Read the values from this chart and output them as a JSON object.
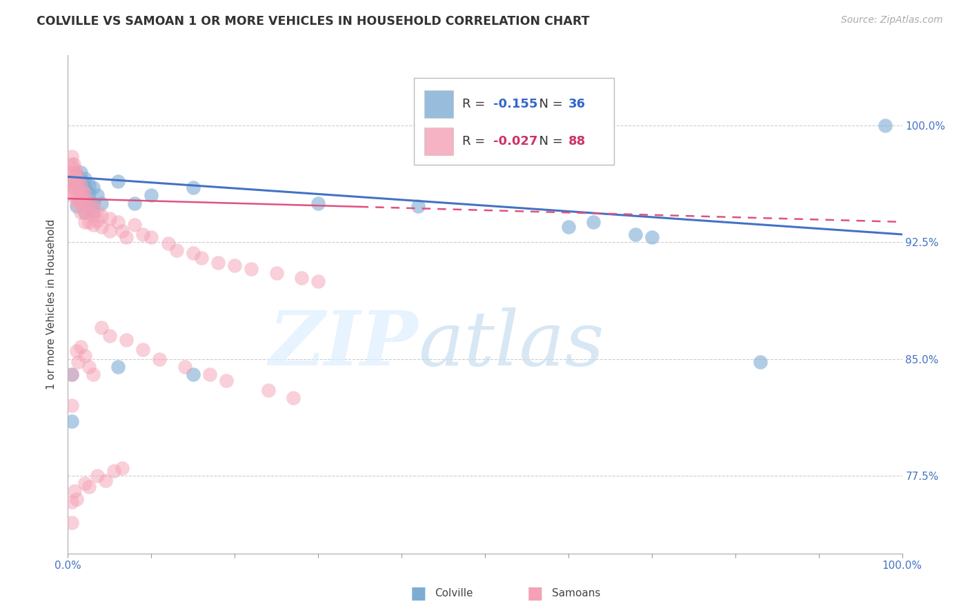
{
  "title": "COLVILLE VS SAMOAN 1 OR MORE VEHICLES IN HOUSEHOLD CORRELATION CHART",
  "source": "Source: ZipAtlas.com",
  "ylabel": "1 or more Vehicles in Household",
  "ytick_labels": [
    "100.0%",
    "92.5%",
    "85.0%",
    "77.5%"
  ],
  "ytick_values": [
    1.0,
    0.925,
    0.85,
    0.775
  ],
  "xmin": 0.0,
  "xmax": 1.0,
  "ymin": 0.725,
  "ymax": 1.045,
  "legend_blue_r": "-0.155",
  "legend_blue_n": "36",
  "legend_pink_r": "-0.027",
  "legend_pink_n": "88",
  "blue_color": "#7eadd4",
  "pink_color": "#f4a0b5",
  "blue_line_color": "#4472c4",
  "pink_line_color": "#e05080",
  "blue_scatter_alpha": 0.6,
  "pink_scatter_alpha": 0.5,
  "blue_x": [
    0.005,
    0.01,
    0.012,
    0.015,
    0.015,
    0.018,
    0.02,
    0.02,
    0.022,
    0.025,
    0.025,
    0.03,
    0.03,
    0.035,
    0.04,
    0.01,
    0.015,
    0.02,
    0.025,
    0.03,
    0.06,
    0.08,
    0.1,
    0.15,
    0.3,
    0.42,
    0.6,
    0.63,
    0.68,
    0.7,
    0.83,
    0.98,
    0.005,
    0.005,
    0.06,
    0.15
  ],
  "blue_y": [
    0.963,
    0.968,
    0.962,
    0.97,
    0.958,
    0.964,
    0.96,
    0.966,
    0.958,
    0.962,
    0.956,
    0.96,
    0.95,
    0.955,
    0.95,
    0.948,
    0.952,
    0.944,
    0.95,
    0.945,
    0.964,
    0.95,
    0.955,
    0.96,
    0.95,
    0.948,
    0.935,
    0.938,
    0.93,
    0.928,
    0.848,
    1.0,
    0.84,
    0.81,
    0.845,
    0.84
  ],
  "pink_x": [
    0.005,
    0.005,
    0.005,
    0.005,
    0.005,
    0.005,
    0.007,
    0.007,
    0.007,
    0.008,
    0.008,
    0.008,
    0.008,
    0.01,
    0.01,
    0.01,
    0.01,
    0.01,
    0.012,
    0.012,
    0.012,
    0.015,
    0.015,
    0.015,
    0.015,
    0.018,
    0.018,
    0.02,
    0.02,
    0.02,
    0.02,
    0.025,
    0.025,
    0.025,
    0.03,
    0.03,
    0.03,
    0.035,
    0.035,
    0.04,
    0.04,
    0.05,
    0.05,
    0.06,
    0.065,
    0.07,
    0.08,
    0.09,
    0.1,
    0.12,
    0.13,
    0.15,
    0.16,
    0.18,
    0.2,
    0.22,
    0.25,
    0.28,
    0.3,
    0.005,
    0.005,
    0.01,
    0.012,
    0.015,
    0.02,
    0.025,
    0.03,
    0.04,
    0.05,
    0.07,
    0.09,
    0.11,
    0.14,
    0.17,
    0.19,
    0.24,
    0.27,
    0.005,
    0.005,
    0.008,
    0.01,
    0.02,
    0.025,
    0.035,
    0.045,
    0.055,
    0.065
  ],
  "pink_y": [
    0.98,
    0.975,
    0.97,
    0.965,
    0.96,
    0.955,
    0.975,
    0.968,
    0.962,
    0.972,
    0.966,
    0.96,
    0.955,
    0.97,
    0.965,
    0.96,
    0.955,
    0.95,
    0.965,
    0.958,
    0.952,
    0.962,
    0.956,
    0.95,
    0.944,
    0.958,
    0.952,
    0.956,
    0.95,
    0.944,
    0.938,
    0.95,
    0.944,
    0.938,
    0.948,
    0.942,
    0.936,
    0.945,
    0.939,
    0.942,
    0.935,
    0.94,
    0.932,
    0.938,
    0.932,
    0.928,
    0.936,
    0.93,
    0.928,
    0.924,
    0.92,
    0.918,
    0.915,
    0.912,
    0.91,
    0.908,
    0.905,
    0.902,
    0.9,
    0.84,
    0.82,
    0.855,
    0.848,
    0.858,
    0.852,
    0.845,
    0.84,
    0.87,
    0.865,
    0.862,
    0.856,
    0.85,
    0.845,
    0.84,
    0.836,
    0.83,
    0.825,
    0.758,
    0.745,
    0.765,
    0.76,
    0.77,
    0.768,
    0.775,
    0.772,
    0.778,
    0.78
  ]
}
